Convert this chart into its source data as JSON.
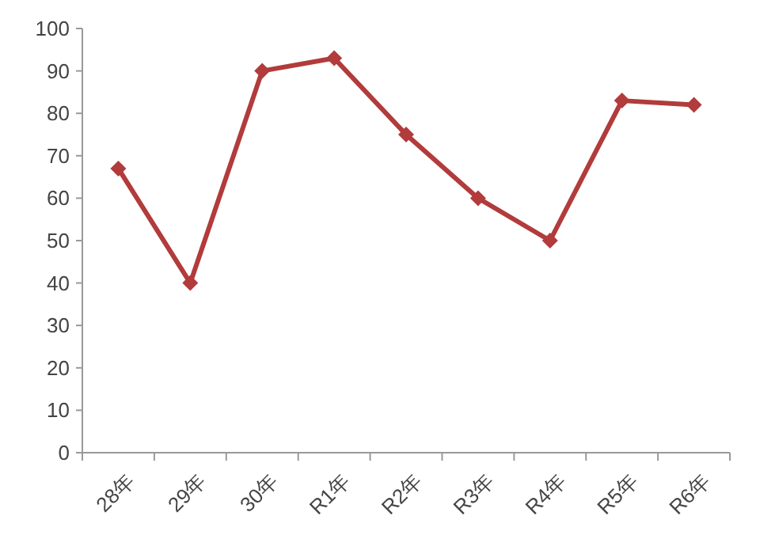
{
  "chart_data": {
    "type": "line",
    "categories": [
      "28年",
      "29年",
      "30年",
      "R1年",
      "R2年",
      "R3年",
      "R4年",
      "R5年",
      "R6年"
    ],
    "series": [
      {
        "color": "#b23b3b",
        "values": [
          67,
          40,
          90,
          93,
          75,
          60,
          50,
          83,
          82
        ]
      }
    ],
    "ylim": [
      0,
      100
    ],
    "yticks": [
      0,
      10,
      20,
      30,
      40,
      50,
      60,
      70,
      80,
      90,
      100
    ],
    "marker": "diamond",
    "line_style": "solid"
  }
}
